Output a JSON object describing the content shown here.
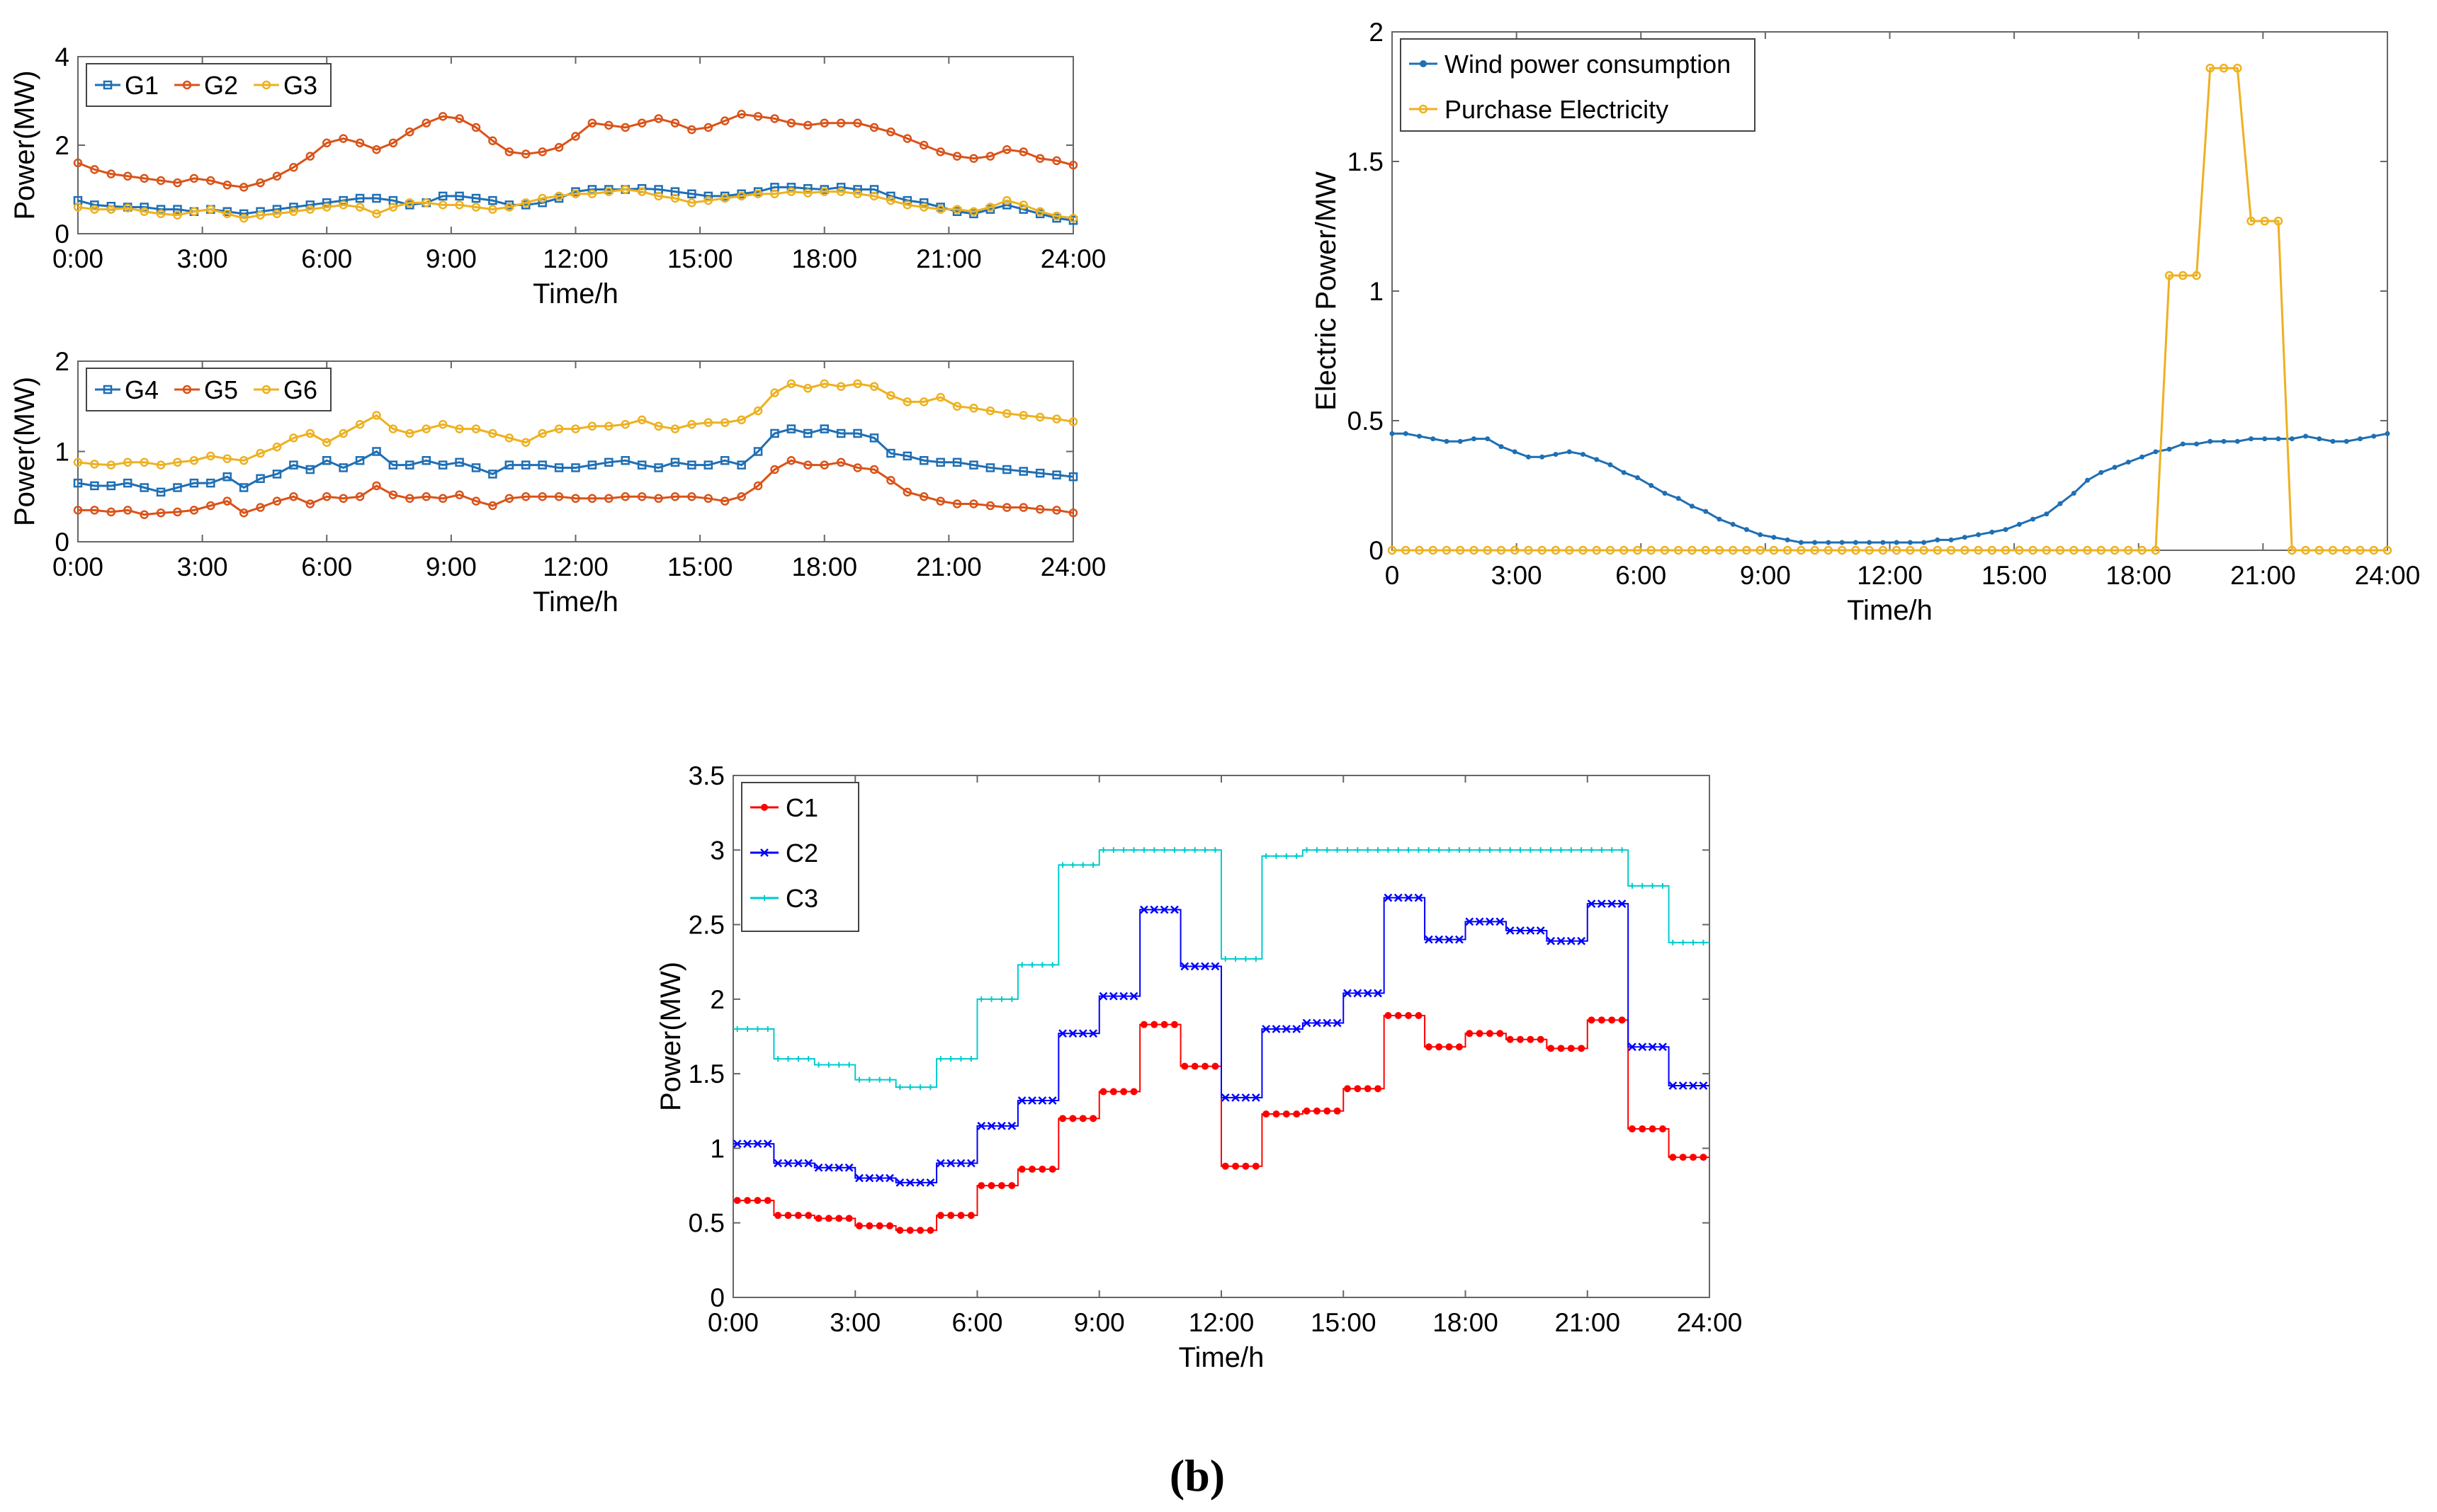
{
  "figure_caption": "(b)",
  "chart_data": [
    {
      "id": "c1",
      "type": "line",
      "title": "",
      "xlabel": "Time/h",
      "ylabel": "Power(MW)",
      "xlim": [
        0,
        24
      ],
      "ylim": [
        0,
        4
      ],
      "grid": false,
      "legend": "top-left",
      "xticks": [
        "0:00",
        "3:00",
        "6:00",
        "9:00",
        "12:00",
        "15:00",
        "18:00",
        "21:00",
        "24:00"
      ],
      "yticks": [
        "0",
        "2",
        "4"
      ],
      "series": [
        {
          "name": "G1",
          "color": "#1f6fb4",
          "marker": "square",
          "values": [
            0.75,
            0.65,
            0.62,
            0.6,
            0.6,
            0.55,
            0.55,
            0.5,
            0.55,
            0.5,
            0.45,
            0.5,
            0.55,
            0.6,
            0.65,
            0.7,
            0.75,
            0.8,
            0.8,
            0.75,
            0.65,
            0.7,
            0.85,
            0.85,
            0.8,
            0.75,
            0.65,
            0.65,
            0.7,
            0.8,
            0.95,
            1.0,
            1.0,
            1.0,
            1.02,
            1.0,
            0.95,
            0.9,
            0.85,
            0.85,
            0.9,
            0.95,
            1.05,
            1.05,
            1.02,
            1.0,
            1.05,
            1.0,
            1.0,
            0.85,
            0.75,
            0.7,
            0.6,
            0.5,
            0.45,
            0.55,
            0.65,
            0.55,
            0.45,
            0.35,
            0.3
          ]
        },
        {
          "name": "G2",
          "color": "#d95319",
          "marker": "circle",
          "values": [
            1.6,
            1.45,
            1.35,
            1.3,
            1.25,
            1.2,
            1.15,
            1.25,
            1.2,
            1.1,
            1.05,
            1.15,
            1.3,
            1.5,
            1.75,
            2.05,
            2.15,
            2.05,
            1.9,
            2.05,
            2.3,
            2.5,
            2.65,
            2.6,
            2.4,
            2.1,
            1.85,
            1.8,
            1.85,
            1.95,
            2.2,
            2.5,
            2.45,
            2.4,
            2.5,
            2.6,
            2.5,
            2.35,
            2.4,
            2.55,
            2.7,
            2.65,
            2.6,
            2.5,
            2.45,
            2.5,
            2.5,
            2.5,
            2.4,
            2.3,
            2.15,
            2.0,
            1.85,
            1.75,
            1.7,
            1.75,
            1.9,
            1.85,
            1.7,
            1.65,
            1.55
          ]
        },
        {
          "name": "G3",
          "color": "#edb120",
          "marker": "circle",
          "values": [
            0.6,
            0.55,
            0.55,
            0.58,
            0.5,
            0.45,
            0.42,
            0.5,
            0.55,
            0.45,
            0.35,
            0.42,
            0.45,
            0.5,
            0.55,
            0.6,
            0.65,
            0.6,
            0.45,
            0.6,
            0.7,
            0.7,
            0.65,
            0.65,
            0.6,
            0.55,
            0.6,
            0.7,
            0.8,
            0.85,
            0.9,
            0.9,
            0.95,
            1.0,
            0.95,
            0.85,
            0.8,
            0.7,
            0.75,
            0.8,
            0.85,
            0.9,
            0.9,
            0.95,
            0.92,
            0.95,
            0.95,
            0.9,
            0.85,
            0.75,
            0.65,
            0.6,
            0.55,
            0.55,
            0.5,
            0.6,
            0.75,
            0.65,
            0.5,
            0.4,
            0.35
          ]
        }
      ]
    },
    {
      "id": "c2",
      "type": "line",
      "title": "",
      "xlabel": "Time/h",
      "ylabel": "Power(MW)",
      "xlim": [
        0,
        24
      ],
      "ylim": [
        0,
        2
      ],
      "grid": false,
      "legend": "top-left",
      "xticks": [
        "0:00",
        "3:00",
        "6:00",
        "9:00",
        "12:00",
        "15:00",
        "18:00",
        "21:00",
        "24:00"
      ],
      "yticks": [
        "0",
        "1",
        "2"
      ],
      "series": [
        {
          "name": "G4",
          "color": "#1f6fb4",
          "marker": "square",
          "values": [
            0.65,
            0.62,
            0.62,
            0.65,
            0.6,
            0.55,
            0.6,
            0.65,
            0.65,
            0.72,
            0.6,
            0.7,
            0.75,
            0.85,
            0.8,
            0.9,
            0.82,
            0.9,
            1.0,
            0.85,
            0.85,
            0.9,
            0.85,
            0.88,
            0.82,
            0.75,
            0.85,
            0.85,
            0.85,
            0.82,
            0.82,
            0.85,
            0.88,
            0.9,
            0.85,
            0.82,
            0.88,
            0.85,
            0.85,
            0.9,
            0.85,
            1.0,
            1.2,
            1.25,
            1.2,
            1.25,
            1.2,
            1.2,
            1.15,
            0.98,
            0.95,
            0.9,
            0.88,
            0.88,
            0.85,
            0.82,
            0.8,
            0.78,
            0.76,
            0.74,
            0.72
          ]
        },
        {
          "name": "G5",
          "color": "#d95319",
          "marker": "circle",
          "values": [
            0.35,
            0.35,
            0.33,
            0.35,
            0.3,
            0.32,
            0.33,
            0.35,
            0.4,
            0.45,
            0.32,
            0.38,
            0.45,
            0.5,
            0.42,
            0.5,
            0.48,
            0.5,
            0.62,
            0.52,
            0.48,
            0.5,
            0.48,
            0.52,
            0.45,
            0.4,
            0.48,
            0.5,
            0.5,
            0.5,
            0.48,
            0.48,
            0.48,
            0.5,
            0.5,
            0.48,
            0.5,
            0.5,
            0.48,
            0.45,
            0.5,
            0.62,
            0.8,
            0.9,
            0.85,
            0.85,
            0.88,
            0.82,
            0.8,
            0.68,
            0.55,
            0.5,
            0.45,
            0.42,
            0.42,
            0.4,
            0.38,
            0.38,
            0.36,
            0.35,
            0.32
          ]
        },
        {
          "name": "G6",
          "color": "#edb120",
          "marker": "circle",
          "values": [
            0.88,
            0.86,
            0.85,
            0.88,
            0.88,
            0.85,
            0.88,
            0.9,
            0.95,
            0.92,
            0.9,
            0.98,
            1.05,
            1.15,
            1.2,
            1.1,
            1.2,
            1.3,
            1.4,
            1.25,
            1.2,
            1.25,
            1.3,
            1.25,
            1.25,
            1.2,
            1.15,
            1.1,
            1.2,
            1.25,
            1.25,
            1.28,
            1.28,
            1.3,
            1.35,
            1.28,
            1.25,
            1.3,
            1.32,
            1.32,
            1.35,
            1.45,
            1.65,
            1.75,
            1.7,
            1.75,
            1.72,
            1.75,
            1.72,
            1.62,
            1.55,
            1.55,
            1.6,
            1.5,
            1.48,
            1.45,
            1.42,
            1.4,
            1.38,
            1.36,
            1.33
          ]
        }
      ]
    },
    {
      "id": "c3",
      "type": "line",
      "title": "",
      "xlabel": "Time/h",
      "ylabel": "Electric Power/MW",
      "xlim": [
        0,
        24
      ],
      "ylim": [
        0,
        2
      ],
      "grid": false,
      "legend": "top-left",
      "xticks": [
        "0",
        "3:00",
        "6:00",
        "9:00",
        "12:00",
        "15:00",
        "18:00",
        "21:00",
        "24:00"
      ],
      "yticks": [
        "0",
        "0.5",
        "1",
        "1.5",
        "2"
      ],
      "series": [
        {
          "name": "Wind power consumption",
          "color": "#1f6fb4",
          "marker": "dot",
          "values": [
            0.45,
            0.45,
            0.44,
            0.43,
            0.42,
            0.42,
            0.43,
            0.43,
            0.4,
            0.38,
            0.36,
            0.36,
            0.37,
            0.38,
            0.37,
            0.35,
            0.33,
            0.3,
            0.28,
            0.25,
            0.22,
            0.2,
            0.17,
            0.15,
            0.12,
            0.1,
            0.08,
            0.06,
            0.05,
            0.04,
            0.03,
            0.03,
            0.03,
            0.03,
            0.03,
            0.03,
            0.03,
            0.03,
            0.03,
            0.03,
            0.04,
            0.04,
            0.05,
            0.06,
            0.07,
            0.08,
            0.1,
            0.12,
            0.14,
            0.18,
            0.22,
            0.27,
            0.3,
            0.32,
            0.34,
            0.36,
            0.38,
            0.39,
            0.41,
            0.41,
            0.42,
            0.42,
            0.42,
            0.43,
            0.43,
            0.43,
            0.43,
            0.44,
            0.43,
            0.42,
            0.42,
            0.43,
            0.44,
            0.45
          ]
        },
        {
          "name": "Purchase Electricity",
          "color": "#edb120",
          "marker": "circle",
          "values": [
            0,
            0,
            0,
            0,
            0,
            0,
            0,
            0,
            0,
            0,
            0,
            0,
            0,
            0,
            0,
            0,
            0,
            0,
            0,
            0,
            0,
            0,
            0,
            0,
            0,
            0,
            0,
            0,
            0,
            0,
            0,
            0,
            0,
            0,
            0,
            0,
            0,
            0,
            0,
            0,
            0,
            0,
            0,
            0,
            0,
            0,
            0,
            0,
            0,
            0,
            0,
            0,
            0,
            0,
            0,
            0,
            0,
            1.06,
            1.06,
            1.06,
            1.86,
            1.86,
            1.86,
            1.27,
            1.27,
            1.27,
            0,
            0,
            0,
            0,
            0,
            0,
            0,
            0
          ]
        }
      ]
    },
    {
      "id": "c4",
      "type": "line",
      "title": "",
      "xlabel": "Time/h",
      "ylabel": "Power(MW)",
      "xlim": [
        0,
        24
      ],
      "ylim": [
        0,
        3.5
      ],
      "grid": false,
      "legend": "top-left",
      "xticks": [
        "0:00",
        "3:00",
        "6:00",
        "9:00",
        "12:00",
        "15:00",
        "18:00",
        "21:00",
        "24:00"
      ],
      "yticks": [
        "0",
        "0.5",
        "1",
        "1.5",
        "2",
        "2.5",
        "3",
        "3.5"
      ],
      "steps": [
        [
          0,
          1,
          0.65,
          1.03,
          1.8
        ],
        [
          1,
          2,
          0.55,
          0.9,
          1.6
        ],
        [
          2,
          3,
          0.53,
          0.87,
          1.56
        ],
        [
          3,
          4,
          0.48,
          0.8,
          1.46
        ],
        [
          4,
          5,
          0.45,
          0.77,
          1.41
        ],
        [
          5,
          6,
          0.55,
          0.9,
          1.6
        ],
        [
          6,
          7,
          0.75,
          1.15,
          2.0
        ],
        [
          7,
          8,
          0.86,
          1.32,
          2.23
        ],
        [
          8,
          9,
          1.2,
          1.77,
          2.9
        ],
        [
          9,
          10,
          1.38,
          2.02,
          3.0
        ],
        [
          10,
          11,
          1.83,
          2.6,
          3.0
        ],
        [
          11,
          12,
          1.55,
          2.22,
          3.0
        ],
        [
          12,
          13,
          0.88,
          1.34,
          2.27
        ],
        [
          13,
          14,
          1.23,
          1.8,
          2.96
        ],
        [
          14,
          15,
          1.25,
          1.84,
          3.0
        ],
        [
          15,
          16,
          1.4,
          2.04,
          3.0
        ],
        [
          16,
          17,
          1.89,
          2.68,
          3.0
        ],
        [
          17,
          18,
          1.68,
          2.4,
          3.0
        ],
        [
          18,
          19,
          1.77,
          2.52,
          3.0
        ],
        [
          19,
          20,
          1.73,
          2.46,
          3.0
        ],
        [
          20,
          21,
          1.67,
          2.39,
          3.0
        ],
        [
          21,
          22,
          1.86,
          2.64,
          3.0
        ],
        [
          22,
          23,
          1.13,
          1.68,
          2.76
        ],
        [
          23,
          24,
          0.94,
          1.42,
          2.38
        ]
      ],
      "series": [
        {
          "name": "C1",
          "color": "#ff0000",
          "marker": "dot"
        },
        {
          "name": "C2",
          "color": "#0000ff",
          "marker": "x"
        },
        {
          "name": "C3",
          "color": "#00cccc",
          "marker": "plus"
        }
      ]
    }
  ]
}
